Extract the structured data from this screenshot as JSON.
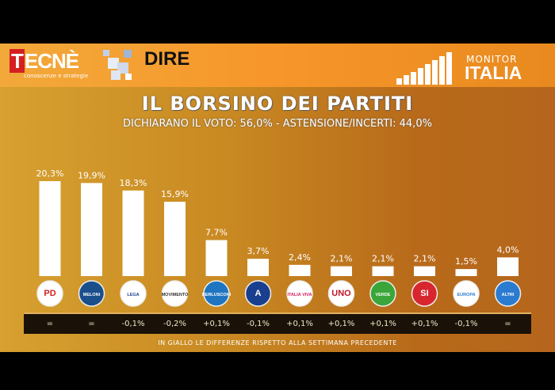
{
  "header": {
    "brand1": "TECNÈ",
    "brand1_tagline": "conoscenze e strategie",
    "brand2": "DIRE",
    "brand3_top": "MONITOR",
    "brand3_bottom": "ITALIA"
  },
  "title": "IL BORSINO DEI PARTITI",
  "subtitle": "DICHIARANO IL VOTO: 56,0% - ASTENSIONE/INCERTI: 44,0%",
  "footnote": "IN GIALLO LE DIFFERENZE RISPETTO ALLA SETTIMANA PRECEDENTE",
  "chart_data": {
    "type": "bar",
    "categories": [
      "PD",
      "Fratelli d'Italia (Meloni)",
      "Lega (Salvini)",
      "Movimento 5 Stelle",
      "Forza Italia (Berlusconi)",
      "Azione",
      "Italia Viva",
      "Italia Uno",
      "Europa Verde",
      "Sinistra Italiana",
      "+Europa",
      "Altri"
    ],
    "logo_labels": [
      "PD",
      "MELONI",
      "LEGA",
      "MOVIMENTO",
      "BERLUSCONI",
      "A",
      "ITALIA VIVA",
      "UNO",
      "VERDE",
      "SI",
      "EUROPA",
      "ALTRI"
    ],
    "logo_colors": [
      "#ffffff",
      "#1a4f8c",
      "#ffffff",
      "#ffffff",
      "#1f75c0",
      "#1a3f8f",
      "#ffffff",
      "#ffffff",
      "#3aa63a",
      "#d8262e",
      "#ffffff",
      "#2b7bd0"
    ],
    "logo_text_colors": [
      "#d42020",
      "#ffffff",
      "#1a3f8f",
      "#333333",
      "#ffffff",
      "#ffffff",
      "#d42060",
      "#c0182a",
      "#ffffff",
      "#ffffff",
      "#2b7bd0",
      "#ffffff"
    ],
    "values": [
      20.3,
      19.9,
      18.3,
      15.9,
      7.7,
      3.7,
      2.4,
      2.1,
      2.1,
      2.1,
      1.5,
      4.0
    ],
    "value_labels": [
      "20,3%",
      "19,9%",
      "18,3%",
      "15,9%",
      "7,7%",
      "3,7%",
      "2,4%",
      "2,1%",
      "2,1%",
      "2,1%",
      "1,5%",
      "4,0%"
    ],
    "differences": [
      "=",
      "=",
      "-0,1%",
      "-0,2%",
      "+0,1%",
      "-0,1%",
      "+0,1%",
      "+0,1%",
      "+0,1%",
      "+0,1%",
      "-0,1%",
      "="
    ],
    "bar_color": "#ffffff",
    "ylim": [
      0,
      21
    ],
    "grid": false
  }
}
